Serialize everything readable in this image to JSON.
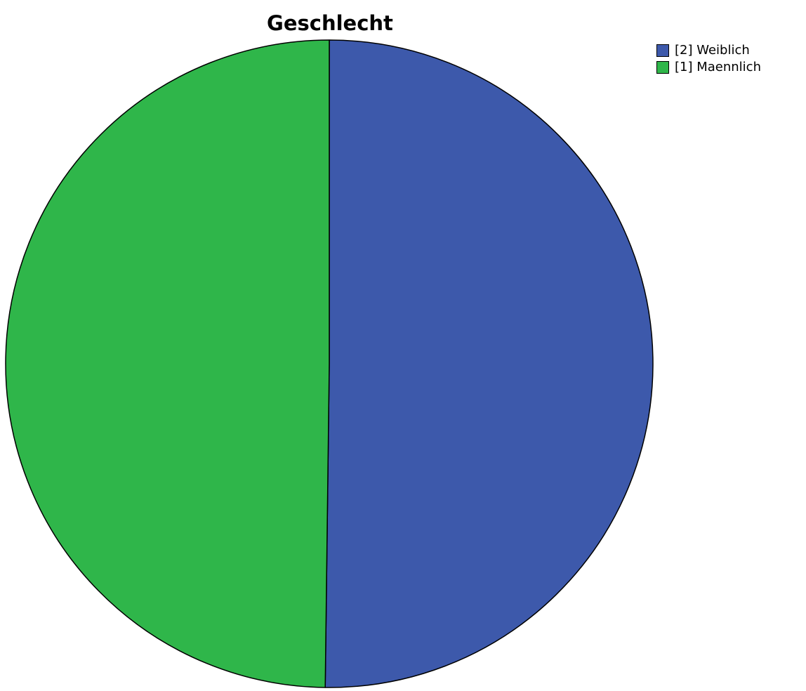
{
  "chart_data": {
    "type": "pie",
    "title": "Geschlecht",
    "slices": [
      {
        "label": "[2] Weiblich",
        "value": 50.2,
        "color": "#3d59ab"
      },
      {
        "label": "[1] Maennlich",
        "value": 49.8,
        "color": "#2fb64a"
      }
    ],
    "start_angle_deg": 0,
    "direction": "clockwise",
    "legend_placement": "top-right"
  }
}
